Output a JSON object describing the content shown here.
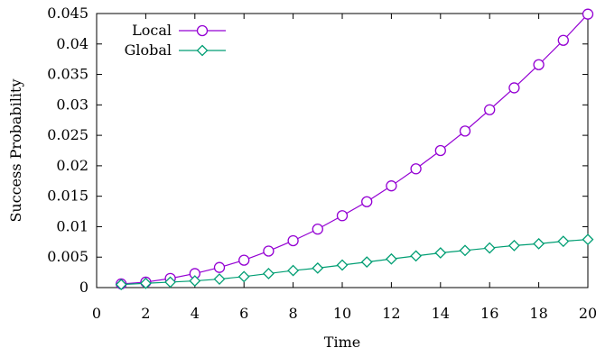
{
  "chart_data": {
    "type": "line",
    "xlabel": "Time",
    "ylabel": "Success Probability",
    "xlim": [
      0,
      20
    ],
    "ylim": [
      0,
      0.045
    ],
    "x_ticks": [
      0,
      2,
      4,
      6,
      8,
      10,
      12,
      14,
      16,
      18,
      20
    ],
    "y_ticks": [
      0,
      0.005,
      0.01,
      0.015,
      0.02,
      0.025,
      0.03,
      0.035,
      0.04,
      0.045
    ],
    "grid": false,
    "legend_position": "top-left",
    "x": [
      1,
      2,
      3,
      4,
      5,
      6,
      7,
      8,
      9,
      10,
      11,
      12,
      13,
      14,
      15,
      16,
      17,
      18,
      19,
      20
    ],
    "series": [
      {
        "name": "Local",
        "color": "#9400d3",
        "marker": "circle",
        "values": [
          0.0006,
          0.0009,
          0.0015,
          0.0023,
          0.0033,
          0.0045,
          0.006,
          0.0077,
          0.0096,
          0.0118,
          0.0141,
          0.0167,
          0.0195,
          0.0225,
          0.0257,
          0.0292,
          0.0328,
          0.0366,
          0.0406,
          0.0449
        ]
      },
      {
        "name": "Global",
        "color": "#009e73",
        "marker": "diamond",
        "values": [
          0.0005,
          0.0007,
          0.0009,
          0.0011,
          0.0014,
          0.0018,
          0.0023,
          0.0028,
          0.0032,
          0.0037,
          0.0042,
          0.0047,
          0.0052,
          0.0057,
          0.0061,
          0.0065,
          0.0069,
          0.0072,
          0.0076,
          0.0079
        ]
      }
    ]
  }
}
